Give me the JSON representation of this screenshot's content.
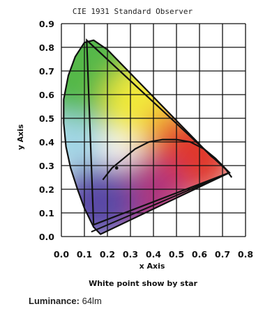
{
  "chart_data": {
    "type": "scatter",
    "title": "CIE 1931 Standard Observer",
    "xlabel": "x Axis",
    "ylabel": "y Axis",
    "caption": "White point show by star",
    "xlim": [
      0,
      0.8
    ],
    "ylim": [
      0,
      0.9
    ],
    "x_ticks": [
      "0.0",
      "0.1",
      "0.2",
      "0.3",
      "0.4",
      "0.5",
      "0.6",
      "0.7",
      "0.8"
    ],
    "y_ticks": [
      "0.0",
      "0.1",
      "0.2",
      "0.3",
      "0.4",
      "0.5",
      "0.6",
      "0.7",
      "0.8",
      "0.9"
    ],
    "grid": true,
    "spectral_locus": {
      "x": [
        0.17,
        0.14,
        0.12,
        0.1,
        0.07,
        0.04,
        0.02,
        0.01,
        0.01,
        0.03,
        0.06,
        0.1,
        0.14,
        0.2,
        0.26,
        0.33,
        0.4,
        0.47,
        0.54,
        0.6,
        0.65,
        0.69,
        0.71,
        0.73
      ],
      "y": [
        0.01,
        0.04,
        0.08,
        0.12,
        0.2,
        0.29,
        0.38,
        0.48,
        0.58,
        0.68,
        0.76,
        0.82,
        0.83,
        0.79,
        0.73,
        0.66,
        0.59,
        0.52,
        0.45,
        0.39,
        0.34,
        0.31,
        0.29,
        0.27
      ]
    },
    "gamut_triangle": {
      "x": [
        0.73,
        0.11,
        0.14
      ],
      "y": [
        0.27,
        0.83,
        0.05
      ]
    },
    "planckian_locus": {
      "x": [
        0.18,
        0.22,
        0.27,
        0.32,
        0.38,
        0.44,
        0.5,
        0.56,
        0.62,
        0.67,
        0.71,
        0.74
      ],
      "y": [
        0.24,
        0.29,
        0.33,
        0.37,
        0.4,
        0.41,
        0.41,
        0.4,
        0.37,
        0.33,
        0.29,
        0.25
      ]
    },
    "white_point": {
      "x": 0.24,
      "y": 0.29
    },
    "colors": {
      "green": "#55b848",
      "yellow": "#f2ea3a",
      "orange": "#f19b38",
      "red": "#e0382b",
      "magenta": "#b0357c",
      "blue": "#5a4aa6",
      "cyan": "#9fd6e6",
      "line": "#111111"
    }
  },
  "footer": {
    "label": "Luminance:",
    "value": "64lm"
  }
}
